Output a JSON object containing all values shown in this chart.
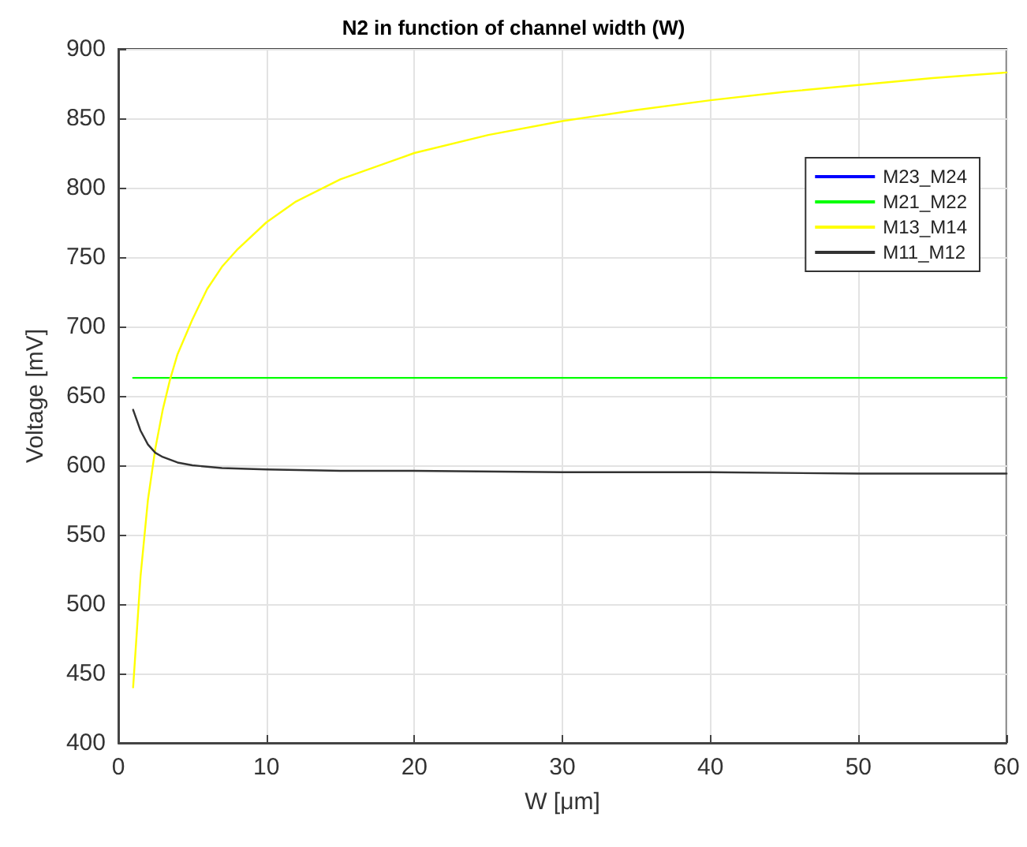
{
  "chart_data": {
    "type": "line",
    "title": "N2 in function of channel width (W)",
    "xlabel": "W [μm]",
    "ylabel": "Voltage [mV]",
    "xlim": [
      0,
      60
    ],
    "xticks": [
      0,
      10,
      20,
      30,
      40,
      50,
      60
    ],
    "ylim": [
      400,
      900
    ],
    "yticks": [
      400,
      450,
      500,
      550,
      600,
      650,
      700,
      750,
      800,
      850,
      900
    ],
    "grid": true,
    "legend": "top right",
    "marker": "none",
    "line_style": "solid",
    "series": [
      {
        "name": "M23_M24",
        "color": "#0000ff"
      },
      {
        "name": "M21_M22",
        "color": "#00ff00",
        "x": [
          1,
          60
        ],
        "values": [
          663,
          663
        ]
      },
      {
        "name": "M13_M14",
        "color": "#ffff00",
        "x": [
          1,
          1.5,
          2,
          2.5,
          3,
          3.5,
          4,
          5,
          6,
          7,
          8,
          10,
          12,
          15,
          20,
          25,
          30,
          35,
          40,
          45,
          50,
          55,
          60
        ],
        "values": [
          440,
          520,
          575,
          612,
          640,
          662,
          680,
          705,
          727,
          743,
          755,
          775,
          790,
          806,
          825,
          838,
          848,
          856,
          863,
          869,
          874,
          879,
          883
        ]
      },
      {
        "name": "M11_M12",
        "color": "#333333",
        "x": [
          1,
          1.5,
          2,
          2.5,
          3,
          4,
          5,
          7,
          10,
          15,
          20,
          30,
          40,
          50,
          60
        ],
        "values": [
          640,
          625,
          615,
          609,
          606,
          602,
          600,
          598,
          597,
          596,
          596,
          595,
          595,
          594,
          594
        ]
      }
    ]
  }
}
